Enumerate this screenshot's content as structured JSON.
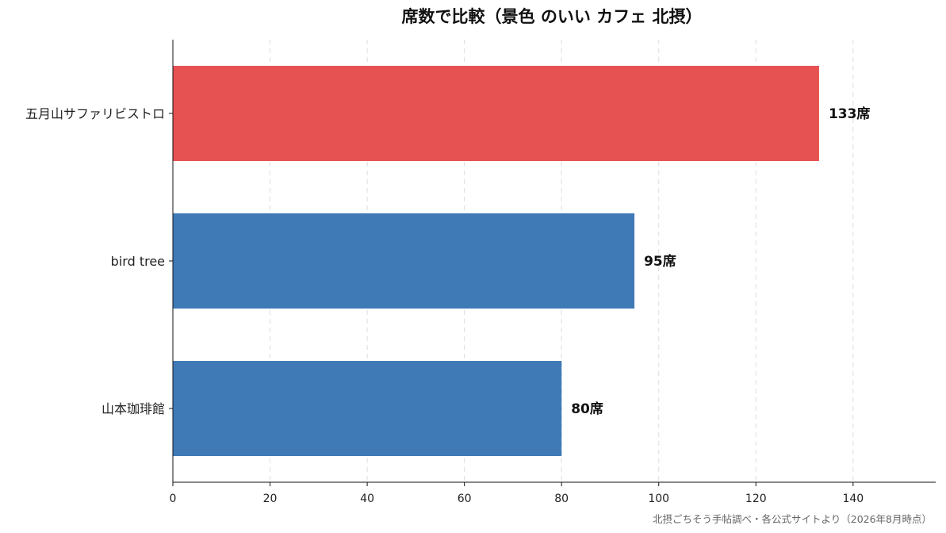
{
  "chart_data": {
    "type": "bar",
    "orientation": "horizontal",
    "title": "席数で比較（景色 のいい カフェ 北摂）",
    "categories": [
      "五月山サファリビストロ",
      "bird tree",
      "山本珈琲館"
    ],
    "values": [
      133,
      95,
      80
    ],
    "value_suffix": "席",
    "xlim": [
      0,
      157
    ],
    "xticks": [
      0,
      20,
      40,
      60,
      80,
      100,
      120,
      140
    ],
    "xlabel": "",
    "ylabel": "",
    "grid": "vertical-dashed",
    "bar_colors": [
      "#e65152",
      "#3f7ab6",
      "#3f7ab6"
    ],
    "source": "北摂ごちそう手帖調べ・各公式サイトより（2026年8月時点）"
  }
}
